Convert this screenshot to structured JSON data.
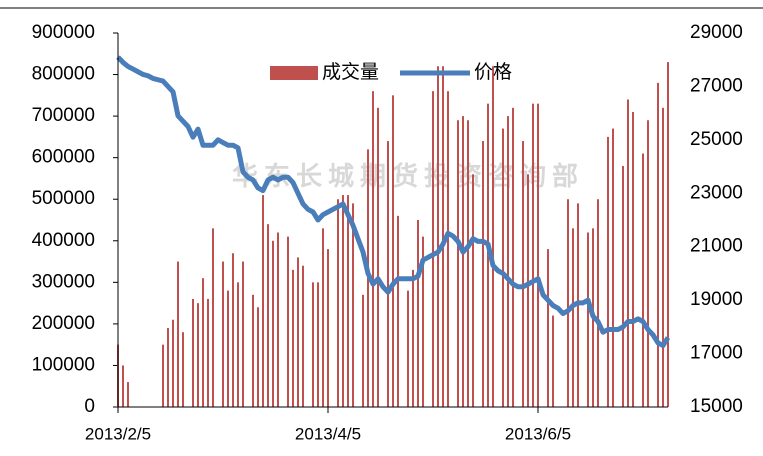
{
  "chart_data": {
    "type": "bar",
    "watermark": "华东长城期货投资咨询部",
    "categories": [
      "2013/2/5",
      null,
      null,
      null,
      null,
      null,
      null,
      null,
      null,
      null,
      null,
      null,
      null,
      null,
      null,
      null,
      null,
      null,
      null,
      null,
      null,
      null,
      null,
      null,
      null,
      null,
      null,
      null,
      null,
      null,
      null,
      null,
      null,
      null,
      null,
      null,
      null,
      null,
      null,
      null,
      null,
      null,
      "2013/4/5",
      null,
      null,
      null,
      null,
      null,
      null,
      null,
      null,
      null,
      null,
      null,
      null,
      null,
      null,
      null,
      null,
      null,
      null,
      null,
      null,
      null,
      null,
      null,
      null,
      null,
      null,
      null,
      null,
      null,
      null,
      null,
      null,
      null,
      null,
      null,
      null,
      null,
      null,
      null,
      null,
      null,
      "2013/6/5",
      null,
      null,
      null,
      null,
      null,
      null,
      null,
      null,
      null,
      null,
      null,
      null,
      null,
      null,
      null,
      null,
      null,
      null,
      null,
      null,
      null,
      null,
      null,
      null,
      null,
      null
    ],
    "series": [
      {
        "name": "成交量",
        "type": "bar",
        "color": "#c0504d",
        "values": [
          150000,
          100000,
          60000,
          0,
          0,
          0,
          0,
          0,
          0,
          150000,
          190000,
          210000,
          350000,
          180000,
          0,
          260000,
          250000,
          310000,
          260000,
          430000,
          0,
          350000,
          280000,
          370000,
          300000,
          350000,
          0,
          270000,
          240000,
          510000,
          440000,
          400000,
          420000,
          0,
          410000,
          330000,
          360000,
          340000,
          0,
          300000,
          300000,
          430000,
          380000,
          0,
          500000,
          510000,
          510000,
          490000,
          0,
          270000,
          620000,
          760000,
          720000,
          0,
          640000,
          750000,
          460000,
          0,
          280000,
          330000,
          450000,
          410000,
          0,
          760000,
          820000,
          820000,
          760000,
          0,
          690000,
          700000,
          690000,
          560000,
          0,
          640000,
          730000,
          820000,
          0,
          670000,
          700000,
          720000,
          0,
          640000,
          560000,
          730000,
          730000,
          0,
          380000,
          220000,
          0,
          0,
          500000,
          430000,
          490000,
          0,
          420000,
          430000,
          500000,
          0,
          650000,
          670000,
          0,
          580000,
          740000,
          710000,
          0,
          610000,
          690000,
          0,
          780000,
          720000,
          830000
        ]
      },
      {
        "name": "价格",
        "type": "line",
        "axis": "y2",
        "color": "#4a7ebb",
        "values": [
          28100,
          27900,
          27750,
          27650,
          27550,
          27450,
          27400,
          27300,
          27250,
          27200,
          27000,
          26800,
          25900,
          25700,
          25500,
          25100,
          25400,
          24800,
          24800,
          24800,
          25000,
          24900,
          24800,
          24800,
          24700,
          23800,
          23600,
          23500,
          23200,
          23100,
          23500,
          23600,
          23500,
          23600,
          23600,
          23400,
          23000,
          22600,
          22400,
          22300,
          22000,
          22200,
          22300,
          22400,
          22500,
          22600,
          22200,
          21800,
          21300,
          20800,
          20000,
          19600,
          19800,
          19500,
          19300,
          19600,
          19800,
          19800,
          19800,
          19800,
          19900,
          20500,
          20600,
          20700,
          20800,
          21100,
          21500,
          21400,
          21200,
          20800,
          21000,
          21300,
          21200,
          21200,
          21100,
          20300,
          20100,
          20000,
          19800,
          19600,
          19500,
          19500,
          19600,
          19700,
          19800,
          19200,
          19000,
          18800,
          18700,
          18500,
          18600,
          18800,
          18900,
          18900,
          19000,
          18400,
          18200,
          17800,
          17900,
          17900,
          17900,
          18000,
          18200,
          18200,
          18300,
          18200,
          17900,
          17700,
          17400,
          17300,
          17600
        ]
      }
    ],
    "ylim": [
      0,
      900000
    ],
    "yticks": [
      0,
      100000,
      200000,
      300000,
      400000,
      500000,
      600000,
      700000,
      800000,
      900000
    ],
    "y2lim": [
      15000,
      29000
    ],
    "y2ticks": [
      15000,
      17000,
      19000,
      21000,
      23000,
      25000,
      27000,
      29000
    ],
    "legend": "top"
  }
}
